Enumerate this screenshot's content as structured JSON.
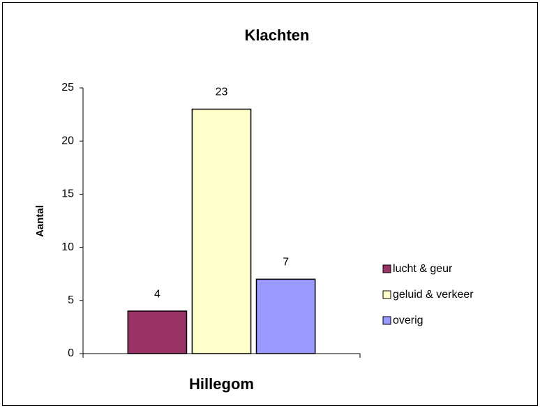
{
  "chart_data": {
    "type": "bar",
    "title": "Klachten",
    "y_label": "Aantal",
    "categories": [
      "Hillegom"
    ],
    "series": [
      {
        "name": "lucht & geur",
        "color": "#993366",
        "values": [
          4
        ]
      },
      {
        "name": "geluid & verkeer",
        "color": "#ffffcc",
        "values": [
          23
        ]
      },
      {
        "name": "overig",
        "color": "#9999ff",
        "values": [
          7
        ]
      }
    ],
    "ylim": [
      0,
      25
    ],
    "yticks": [
      0,
      5,
      10,
      15,
      20,
      25
    ],
    "grid": false,
    "legend": "right",
    "data_labels": true
  }
}
